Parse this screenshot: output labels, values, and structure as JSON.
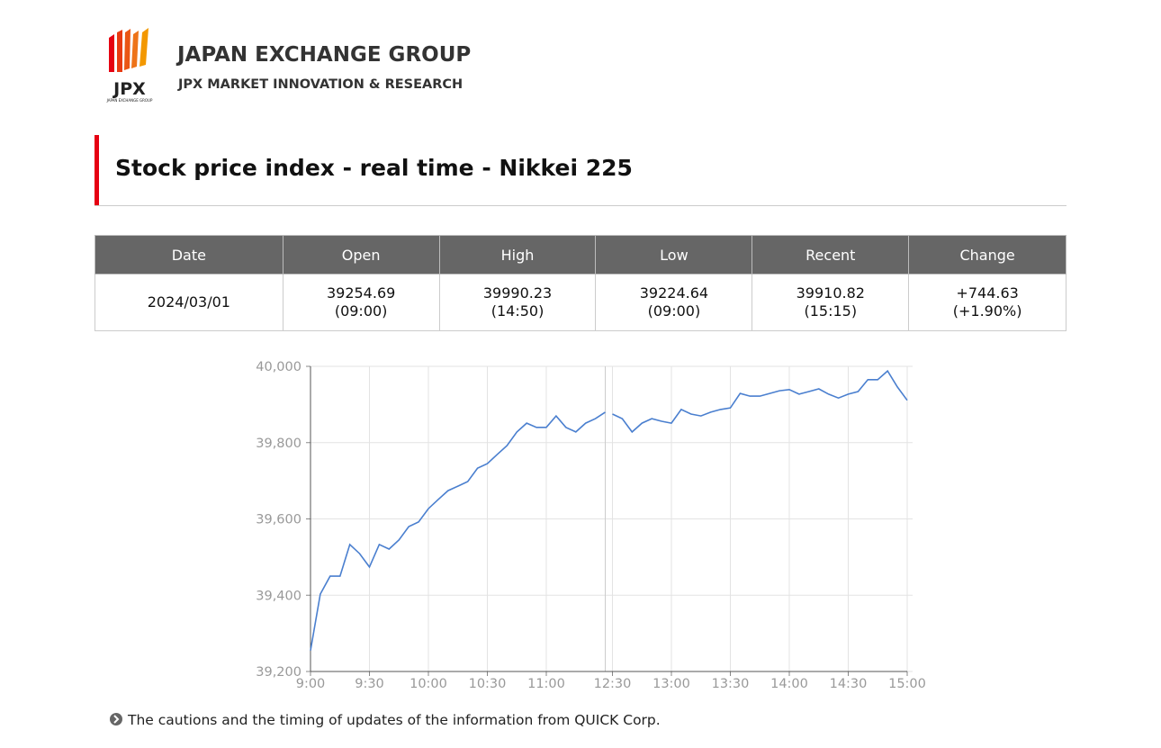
{
  "header": {
    "logo": "JPX",
    "logo_small": "JAPAN EXCHANGE GROUP",
    "company": "JAPAN EXCHANGE GROUP",
    "subtitle": "JPX MARKET INNOVATION & RESEARCH"
  },
  "title": "Stock price index - real time - Nikkei 225",
  "table": {
    "headers": [
      "Date",
      "Open",
      "High",
      "Low",
      "Recent",
      "Change"
    ],
    "rows": [
      [
        [
          "2024/03/01"
        ],
        [
          "39254.69",
          "(09:00)"
        ],
        [
          "39990.23",
          "(14:50)"
        ],
        [
          "39224.64",
          "(09:00)"
        ],
        [
          "39910.82",
          "(15:15)"
        ],
        [
          "+744.63",
          "(+1.90%)"
        ]
      ]
    ]
  },
  "chart_data": {
    "type": "line",
    "x": [
      "9:00",
      "9:05",
      "9:10",
      "9:15",
      "9:20",
      "9:25",
      "9:30",
      "9:35",
      "9:40",
      "9:45",
      "9:50",
      "9:55",
      "10:00",
      "10:05",
      "10:10",
      "10:15",
      "10:20",
      "10:25",
      "10:30",
      "10:35",
      "10:40",
      "10:45",
      "10:50",
      "10:55",
      "11:00",
      "11:05",
      "11:10",
      "11:15",
      "11:20",
      "11:25",
      "11:30",
      "12:00",
      "12:30",
      "12:35",
      "12:40",
      "12:45",
      "12:50",
      "12:55",
      "13:00",
      "13:05",
      "13:10",
      "13:15",
      "13:20",
      "13:25",
      "13:30",
      "13:35",
      "13:40",
      "13:45",
      "13:50",
      "13:55",
      "14:00",
      "14:05",
      "14:10",
      "14:15",
      "14:20",
      "14:25",
      "14:30",
      "14:35",
      "14:40",
      "14:45",
      "14:50",
      "14:55",
      "15:00"
    ],
    "values": [
      39255,
      39403,
      39450,
      39450,
      39533,
      39509,
      39474,
      39533,
      39521,
      39545,
      39580,
      39592,
      39627,
      39651,
      39674,
      39686,
      39698,
      39733,
      39745,
      39769,
      39792,
      39828,
      39851,
      39840,
      39840,
      39870,
      39840,
      39828,
      39851,
      39863,
      39880,
      null,
      39875,
      39863,
      39828,
      39851,
      39863,
      39856,
      39851,
      39887,
      39875,
      39870,
      39880,
      39887,
      39891,
      39929,
      39922,
      39922,
      39929,
      39936,
      39939,
      39927,
      39934,
      39941,
      39927,
      39917,
      39927,
      39934,
      39965,
      39965,
      39988,
      39946,
      39911
    ],
    "color": "#4a7fcf",
    "xlim": [
      "9:00",
      "15:00"
    ],
    "xticks": [
      "9:00",
      "9:30",
      "10:00",
      "10:30",
      "11:00",
      "12:30",
      "13:00",
      "13:30",
      "14:00",
      "14:30",
      "15:00"
    ],
    "ylim": [
      39200,
      40000
    ],
    "yticks": [
      {
        "value": 39200,
        "label": "39,200"
      },
      {
        "value": 39400,
        "label": "39,400"
      },
      {
        "value": 39600,
        "label": "39,600"
      },
      {
        "value": 39800,
        "label": "39,800"
      },
      {
        "value": 40000,
        "label": "40,000"
      }
    ],
    "grid": true
  },
  "footer": "The cautions and the timing of updates of the information from QUICK Corp."
}
